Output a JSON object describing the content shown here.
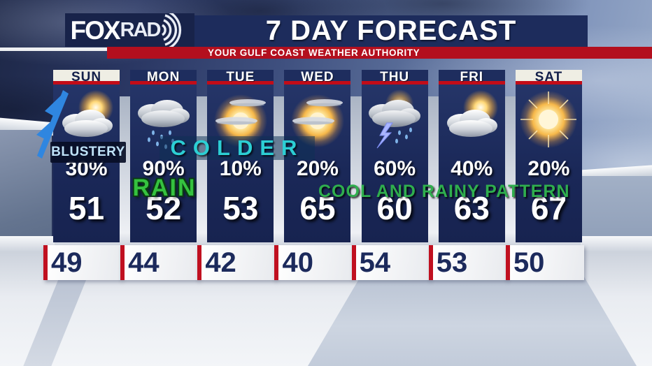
{
  "header": {
    "logo": {
      "fox": "FOX",
      "rad": "RAD",
      "icon": "radar-waves-icon"
    },
    "title": "7 DAY FORECAST",
    "subtitle": "YOUR GULF COAST WEATHER AUTHORITY"
  },
  "annotations": {
    "blustery": "BLUSTERY",
    "colder": "COLDER",
    "rain": "RAIN",
    "cool_rainy": "COOL AND RAINY PATTERN"
  },
  "days": [
    {
      "label": "SUN",
      "highlighted": true,
      "icon": "partly-cloudy",
      "wind_flag": true,
      "precip": "30%",
      "high": "51",
      "low": "49"
    },
    {
      "label": "MON",
      "highlighted": false,
      "icon": "rain",
      "wind_flag": false,
      "precip": "90%",
      "high": "52",
      "low": "44"
    },
    {
      "label": "TUE",
      "highlighted": false,
      "icon": "mostly-sunny",
      "wind_flag": false,
      "precip": "10%",
      "high": "53",
      "low": "42"
    },
    {
      "label": "WED",
      "highlighted": false,
      "icon": "mostly-sunny",
      "wind_flag": false,
      "precip": "20%",
      "high": "65",
      "low": "40"
    },
    {
      "label": "THU",
      "highlighted": false,
      "icon": "thunderstorms",
      "wind_flag": false,
      "precip": "60%",
      "high": "60",
      "low": "54"
    },
    {
      "label": "FRI",
      "highlighted": false,
      "icon": "partly-cloudy",
      "wind_flag": false,
      "precip": "40%",
      "high": "63",
      "low": "53"
    },
    {
      "label": "SAT",
      "highlighted": true,
      "icon": "sunny",
      "wind_flag": false,
      "precip": "20%",
      "high": "67",
      "low": "50"
    }
  ],
  "colors": {
    "panel_navy": "#1c2a5c",
    "title_bar_navy": "#1d2c5c",
    "logo_box_navy": "#18234a",
    "banner_red": "#b30f1e",
    "underline_red": "#c20c18",
    "highlight_header_white": "#efeee4",
    "teal_annotation": "#2ccfd4",
    "green_annotation": "#2fae4e",
    "low_temp_navy": "#1c2a5c",
    "wind_flag_blue": "#2f86e0"
  },
  "chart_data": {
    "type": "table",
    "title": "7 DAY FORECAST",
    "subtitle": "YOUR GULF COAST WEATHER AUTHORITY",
    "columns": [
      "day",
      "condition",
      "precip_chance_pct",
      "high_f",
      "low_f"
    ],
    "rows": [
      [
        "SUN",
        "partly-cloudy-windy",
        30,
        51,
        49
      ],
      [
        "MON",
        "rain",
        90,
        52,
        44
      ],
      [
        "TUE",
        "mostly-sunny",
        10,
        53,
        42
      ],
      [
        "WED",
        "mostly-sunny",
        20,
        65,
        40
      ],
      [
        "THU",
        "thunderstorms",
        60,
        60,
        54
      ],
      [
        "FRI",
        "partly-cloudy",
        40,
        63,
        53
      ],
      [
        "SAT",
        "sunny",
        20,
        67,
        50
      ]
    ],
    "annotations": [
      {
        "text": "BLUSTERY",
        "applies_to": "SUN"
      },
      {
        "text": "COLDER",
        "applies_to": "MON-TUE"
      },
      {
        "text": "RAIN",
        "applies_to": "MON"
      },
      {
        "text": "COOL AND RAINY PATTERN",
        "applies_to": "WED-SAT"
      }
    ]
  }
}
